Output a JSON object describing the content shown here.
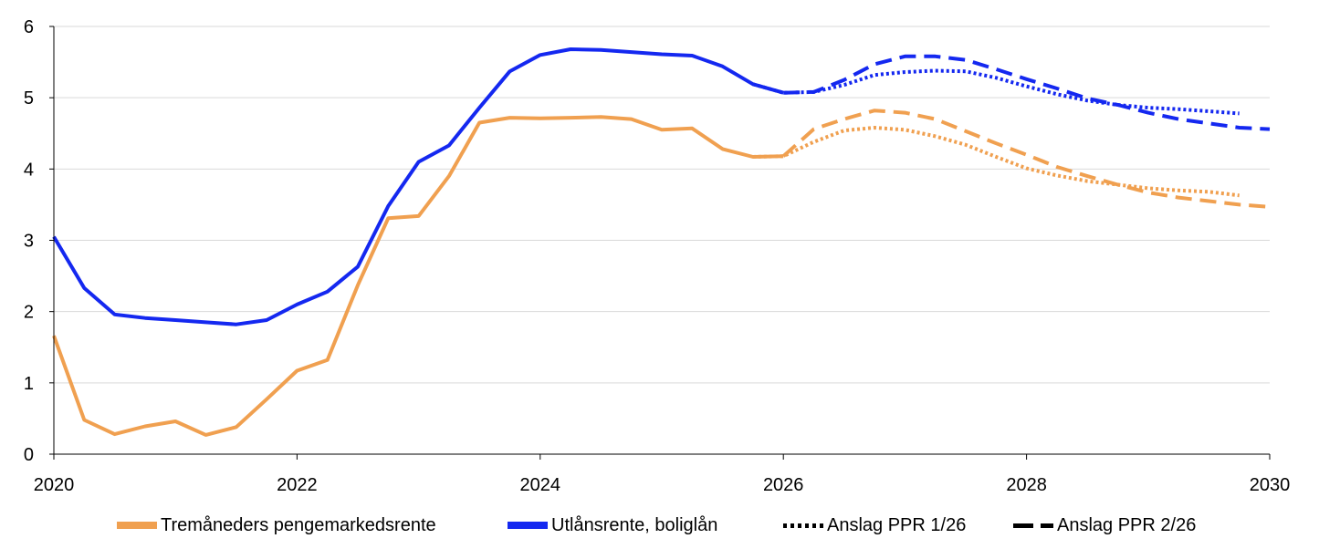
{
  "chart_data": {
    "type": "line",
    "xlim": [
      2020,
      2030
    ],
    "ylim": [
      0,
      6
    ],
    "x_ticks": [
      "2020",
      "2022",
      "2024",
      "2026",
      "2028",
      "2030"
    ],
    "y_ticks": [
      "0",
      "1",
      "2",
      "3",
      "4",
      "5",
      "6"
    ],
    "grid": "horizontal",
    "legend_position": "bottom",
    "colors": {
      "orange": "#F0A050",
      "blue": "#1428F0",
      "black": "#000000"
    },
    "series": [
      {
        "name": "Tremåneders pengemarkedsrente",
        "color": "#F0A050",
        "style": "solid",
        "x": [
          2020.0,
          2020.25,
          2020.5,
          2020.75,
          2021.0,
          2021.25,
          2021.5,
          2021.75,
          2022.0,
          2022.25,
          2022.5,
          2022.75,
          2023.0,
          2023.25,
          2023.5,
          2023.75,
          2024.0,
          2024.25,
          2024.5,
          2024.75,
          2025.0,
          2025.25,
          2025.5,
          2025.75,
          2026.0
        ],
        "y": [
          1.66,
          0.48,
          0.28,
          0.39,
          0.46,
          0.27,
          0.38,
          0.77,
          1.17,
          1.32,
          2.37,
          3.31,
          3.34,
          3.9,
          4.65,
          4.72,
          4.71,
          4.72,
          4.73,
          4.7,
          4.55,
          4.57,
          4.28,
          4.17,
          4.18
        ]
      },
      {
        "name": "Utlånsrente, boliglån",
        "color": "#1428F0",
        "style": "solid",
        "x": [
          2020.0,
          2020.25,
          2020.5,
          2020.75,
          2021.0,
          2021.25,
          2021.5,
          2021.75,
          2022.0,
          2022.25,
          2022.5,
          2022.75,
          2023.0,
          2023.25,
          2023.5,
          2023.75,
          2024.0,
          2024.25,
          2024.5,
          2024.75,
          2025.0,
          2025.25,
          2025.5,
          2025.75,
          2026.0
        ],
        "y": [
          3.05,
          2.33,
          1.96,
          1.91,
          1.88,
          1.85,
          1.82,
          1.88,
          2.1,
          2.28,
          2.63,
          3.48,
          4.1,
          4.33,
          4.86,
          5.37,
          5.6,
          5.68,
          5.67,
          5.64,
          5.61,
          5.59,
          5.44,
          5.19,
          5.07
        ]
      },
      {
        "name": "Anslag PPR 1/26",
        "color": "#F0A050",
        "style": "dotted",
        "x": [
          2025.75,
          2026.0,
          2026.25,
          2026.5,
          2026.75,
          2027.0,
          2027.25,
          2027.5,
          2027.75,
          2028.0,
          2028.25,
          2028.5,
          2028.75,
          2029.0,
          2029.25,
          2029.5,
          2029.75
        ],
        "y": [
          4.17,
          4.18,
          4.38,
          4.54,
          4.58,
          4.55,
          4.46,
          4.34,
          4.17,
          4.01,
          3.91,
          3.83,
          3.78,
          3.73,
          3.7,
          3.68,
          3.63
        ]
      },
      {
        "name": "Anslag PPR 1/26",
        "color": "#1428F0",
        "style": "dotted",
        "x": [
          2025.75,
          2026.0,
          2026.25,
          2026.5,
          2026.75,
          2027.0,
          2027.25,
          2027.5,
          2027.75,
          2028.0,
          2028.25,
          2028.5,
          2028.75,
          2029.0,
          2029.25,
          2029.5,
          2029.75
        ],
        "y": [
          5.19,
          5.07,
          5.08,
          5.18,
          5.32,
          5.36,
          5.38,
          5.37,
          5.28,
          5.16,
          5.05,
          4.96,
          4.9,
          4.86,
          4.84,
          4.81,
          4.78
        ]
      },
      {
        "name": "Anslag PPR 2/26",
        "color": "#F0A050",
        "style": "dashed",
        "x": [
          2026.0,
          2026.25,
          2026.5,
          2026.75,
          2027.0,
          2027.25,
          2027.5,
          2027.75,
          2028.0,
          2028.25,
          2028.5,
          2028.75,
          2029.0,
          2029.25,
          2029.5,
          2029.75,
          2030.0
        ],
        "y": [
          4.18,
          4.56,
          4.7,
          4.82,
          4.79,
          4.7,
          4.53,
          4.36,
          4.2,
          4.03,
          3.9,
          3.78,
          3.67,
          3.6,
          3.55,
          3.5,
          3.47
        ]
      },
      {
        "name": "Anslag PPR 2/26",
        "color": "#1428F0",
        "style": "dashed",
        "x": [
          2026.0,
          2026.25,
          2026.5,
          2026.75,
          2027.0,
          2027.25,
          2027.5,
          2027.75,
          2028.0,
          2028.25,
          2028.5,
          2028.75,
          2029.0,
          2029.25,
          2029.5,
          2029.75,
          2030.0
        ],
        "y": [
          5.07,
          5.08,
          5.25,
          5.47,
          5.58,
          5.58,
          5.53,
          5.4,
          5.26,
          5.13,
          4.99,
          4.9,
          4.79,
          4.7,
          4.64,
          4.58,
          4.56
        ]
      }
    ],
    "legend": [
      {
        "label": "Tremåneders pengemarkedsrente",
        "color": "#F0A050",
        "style": "solid"
      },
      {
        "label": "Utlånsrente, boliglån",
        "color": "#1428F0",
        "style": "solid"
      },
      {
        "label": "Anslag PPR 1/26",
        "color": "#000000",
        "style": "dotted"
      },
      {
        "label": "Anslag PPR 2/26",
        "color": "#000000",
        "style": "dashed"
      }
    ]
  }
}
